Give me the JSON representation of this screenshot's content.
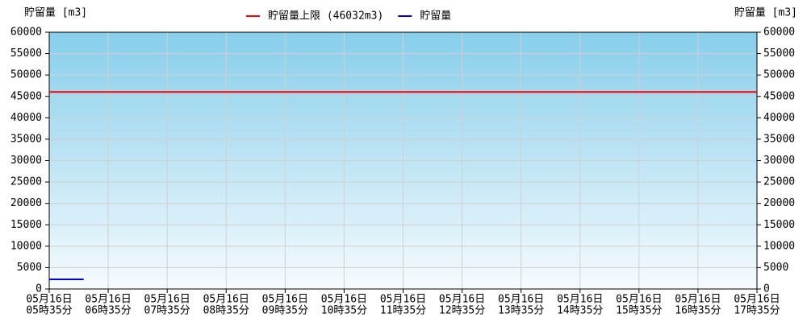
{
  "chart_data": {
    "type": "line",
    "y_label": "貯留量 [m3]",
    "y2_label": "貯留量 [m3]",
    "xlim": [
      335,
      1055
    ],
    "xticks": [
      {
        "value": 335,
        "label": [
          "05月16日",
          "05時35分"
        ]
      },
      {
        "value": 395,
        "label": [
          "05月16日",
          "06時35分"
        ]
      },
      {
        "value": 455,
        "label": [
          "05月16日",
          "07時35分"
        ]
      },
      {
        "value": 515,
        "label": [
          "05月16日",
          "08時35分"
        ]
      },
      {
        "value": 575,
        "label": [
          "05月16日",
          "09時35分"
        ]
      },
      {
        "value": 635,
        "label": [
          "05月16日",
          "10時35分"
        ]
      },
      {
        "value": 695,
        "label": [
          "05月16日",
          "11時35分"
        ]
      },
      {
        "value": 755,
        "label": [
          "05月16日",
          "12時35分"
        ]
      },
      {
        "value": 815,
        "label": [
          "05月16日",
          "13時35分"
        ]
      },
      {
        "value": 875,
        "label": [
          "05月16日",
          "14時35分"
        ]
      },
      {
        "value": 935,
        "label": [
          "05月16日",
          "15時35分"
        ]
      },
      {
        "value": 995,
        "label": [
          "05月16日",
          "16時35分"
        ]
      },
      {
        "value": 1055,
        "label": [
          "05月16日",
          "17時35分"
        ]
      }
    ],
    "ylim": [
      0,
      60000
    ],
    "yticks": [
      0,
      5000,
      10000,
      15000,
      20000,
      25000,
      30000,
      35000,
      40000,
      45000,
      50000,
      55000,
      60000
    ],
    "y2lim": [
      0,
      60000
    ],
    "y2ticks": [
      0,
      5000,
      10000,
      15000,
      20000,
      25000,
      30000,
      35000,
      40000,
      45000,
      50000,
      55000,
      60000
    ],
    "grid": true,
    "series": [
      {
        "name": "貯留量上限 (46032m3)",
        "color": "#ff0000",
        "x": [
          335,
          1055
        ],
        "values": [
          46032,
          46032
        ]
      },
      {
        "name": "貯留量",
        "color": "#0000cc",
        "x": [
          335,
          340,
          345,
          350,
          355,
          360,
          365,
          370
        ],
        "values": [
          2250,
          2250,
          2250,
          2250,
          2250,
          2250,
          2250,
          2250
        ]
      }
    ]
  }
}
